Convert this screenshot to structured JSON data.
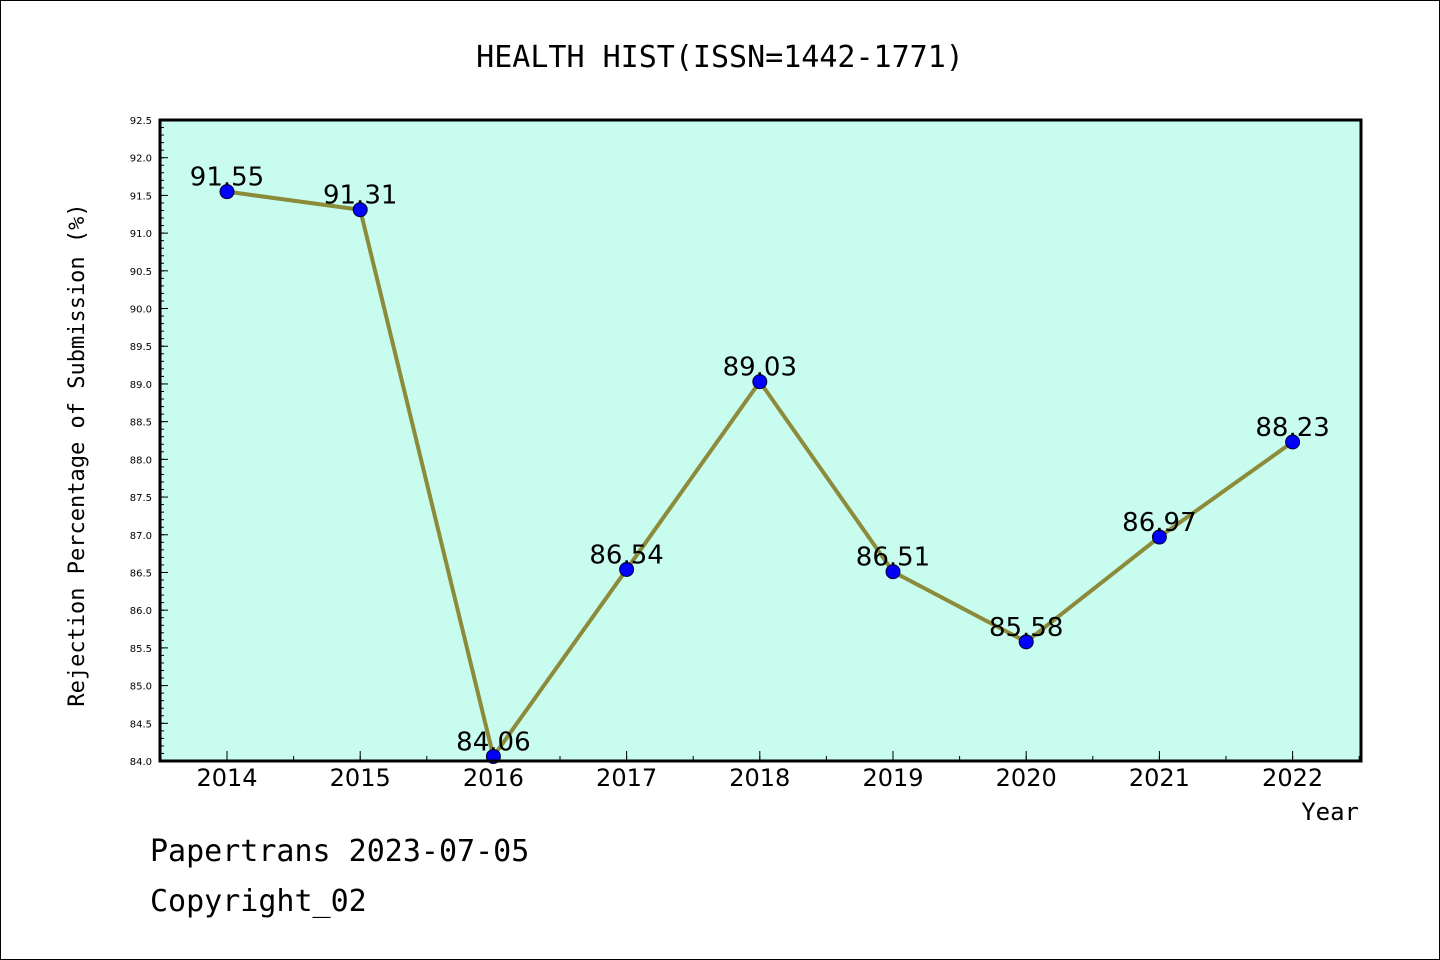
{
  "chart_data": {
    "type": "line",
    "title": "HEALTH HIST(ISSN=1442-1771)",
    "xlabel": "Year",
    "ylabel": "Rejection Percentage of Submission (%)",
    "ylim": [
      84.0,
      92.5
    ],
    "yticks": [
      "84.0",
      "84.5",
      "85.0",
      "85.5",
      "86.0",
      "86.5",
      "87.0",
      "87.5",
      "88.0",
      "88.5",
      "89.0",
      "89.5",
      "90.0",
      "90.5",
      "91.0",
      "91.5",
      "92.0",
      "92.5"
    ],
    "categories": [
      "2014",
      "2015",
      "2016",
      "2017",
      "2018",
      "2019",
      "2020",
      "2021",
      "2022"
    ],
    "series": [
      {
        "values": [
          91.55,
          91.31,
          84.06,
          86.54,
          89.03,
          86.51,
          85.58,
          86.97,
          88.23
        ]
      }
    ],
    "data_labels": [
      "91.55",
      "91.31",
      "84.06",
      "86.54",
      "89.03",
      "86.51",
      "85.58",
      "86.97",
      "88.23"
    ],
    "colors": {
      "background": "#c8fcee",
      "line": "#8b8b3a",
      "marker": "#0000ff"
    },
    "grid": false,
    "legend": "none"
  },
  "footer": {
    "line1": "Papertrans 2023-07-05",
    "line2": "Copyright_02"
  }
}
